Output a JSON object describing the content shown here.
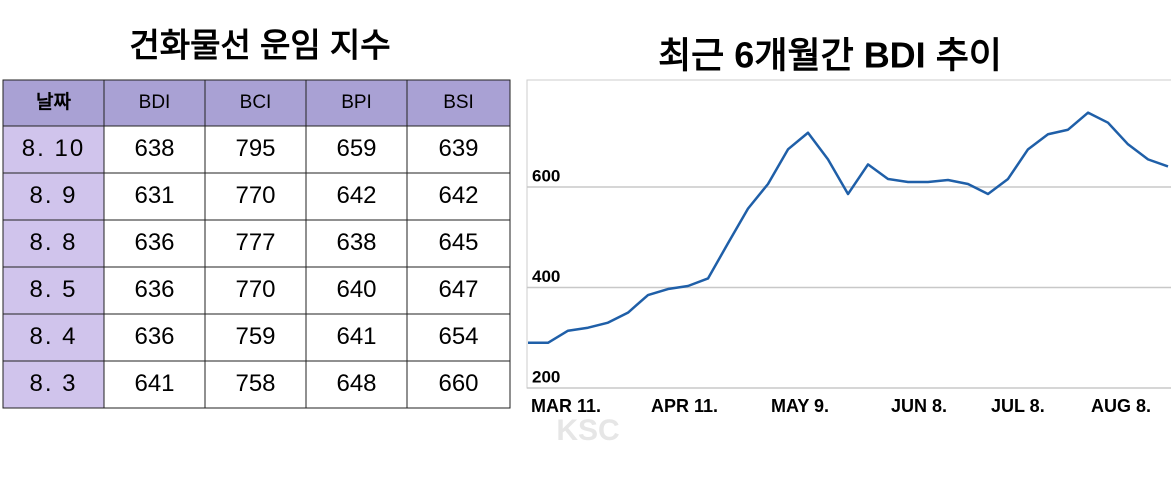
{
  "table": {
    "title": "건화물선 운임 지수",
    "headers": [
      "날짜",
      "BDI",
      "BCI",
      "BPI",
      "BSI"
    ],
    "rows": [
      [
        "8. 10",
        "638",
        "795",
        "659",
        "639"
      ],
      [
        "8. 9",
        "631",
        "770",
        "642",
        "642"
      ],
      [
        "8. 8",
        "636",
        "777",
        "638",
        "645"
      ],
      [
        "8. 5",
        "636",
        "770",
        "640",
        "647"
      ],
      [
        "8. 4",
        "636",
        "759",
        "641",
        "654"
      ],
      [
        "8. 3",
        "641",
        "758",
        "648",
        "660"
      ]
    ]
  },
  "chart_data": {
    "type": "line",
    "title": "최근 6개월간 BDI 추이",
    "categories": [
      "MAR 11.",
      null,
      null,
      null,
      null,
      null,
      "APR 11.",
      null,
      null,
      null,
      null,
      null,
      "MAY 9.",
      null,
      null,
      null,
      null,
      null,
      "JUN 8.",
      null,
      null,
      null,
      null,
      "JUL 8.",
      null,
      null,
      null,
      null,
      "AUG 8.",
      null,
      null,
      null,
      null
    ],
    "values": [
      290,
      290,
      314,
      320,
      330,
      350,
      385,
      397,
      403,
      418,
      488,
      557,
      606,
      675,
      708,
      655,
      586,
      645,
      616,
      610,
      610,
      614,
      606,
      586,
      616,
      675,
      705,
      714,
      748,
      728,
      685,
      655,
      641
    ],
    "color": "#1f5fa8",
    "ylim": [
      200,
      807
    ],
    "yticks": [
      200,
      400,
      600
    ],
    "grid": true
  },
  "watermark": "KSC"
}
